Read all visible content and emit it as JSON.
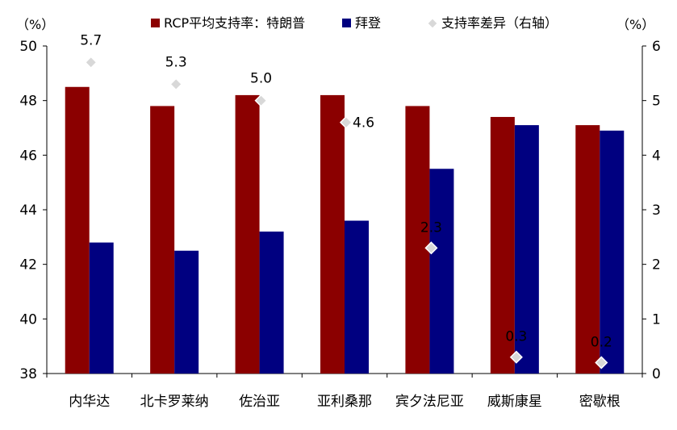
{
  "chart_data": {
    "type": "bar",
    "categories": [
      "内华达",
      "北卡罗莱纳",
      "佐治亚",
      "亚利桑那",
      "宾夕法尼亚",
      "威斯康星",
      "密歇根"
    ],
    "series": [
      {
        "name": "RCP平均支持率：特朗普",
        "type": "bar",
        "axis": "left",
        "color": "#8B0000",
        "values": [
          48.5,
          47.8,
          48.2,
          48.2,
          47.8,
          47.4,
          47.1
        ]
      },
      {
        "name": "拜登",
        "type": "bar",
        "axis": "left",
        "color": "#000080",
        "values": [
          42.8,
          42.5,
          43.2,
          43.6,
          45.5,
          47.1,
          46.9
        ]
      },
      {
        "name": "支持率差异（右轴）",
        "type": "scatter",
        "axis": "right",
        "color": "#d8d8d8",
        "values": [
          5.7,
          5.3,
          5.0,
          4.6,
          2.3,
          0.3,
          0.2
        ],
        "labels": [
          "5.7",
          "5.3",
          "5.0",
          "4.6",
          "2.3",
          "0.3",
          "0.2"
        ]
      }
    ],
    "left_axis": {
      "unit": "（%）",
      "ylim": [
        38,
        50
      ],
      "ticks": [
        "38",
        "40",
        "42",
        "44",
        "46",
        "48",
        "50"
      ]
    },
    "right_axis": {
      "unit": "（%）",
      "ylim": [
        0,
        6
      ],
      "ticks": [
        "0",
        "1",
        "2",
        "3",
        "4",
        "5",
        "6"
      ]
    },
    "legend_position": "top",
    "grid": false
  }
}
